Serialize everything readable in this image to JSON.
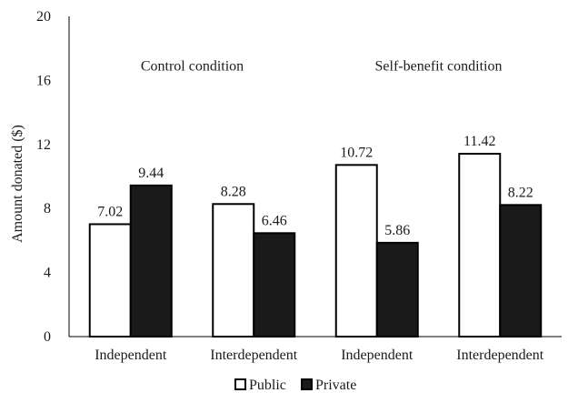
{
  "chart_data": {
    "type": "bar",
    "title": "",
    "xlabel": "",
    "ylabel": "Amount donated ($)",
    "ylim": [
      0,
      20
    ],
    "yticks": [
      0,
      4,
      8,
      12,
      16,
      20
    ],
    "grid": false,
    "legend_position": "bottom",
    "categories": [
      "Independent",
      "Interdependent",
      "Independent",
      "Interdependent"
    ],
    "series": [
      {
        "name": "Public",
        "values": [
          7.02,
          8.28,
          10.72,
          11.42
        ],
        "labels": [
          "7.02",
          "8.28",
          "10.72",
          "11.42"
        ],
        "color": "#ffffff",
        "stroke": "#000000"
      },
      {
        "name": "Private",
        "values": [
          9.44,
          6.46,
          5.86,
          8.22
        ],
        "labels": [
          "9.44",
          "6.46",
          "5.86",
          "8.22"
        ],
        "color": "#1a1a1a",
        "stroke": "#000000"
      }
    ],
    "annotations": [
      {
        "text": "Control condition",
        "category_index": 0.5,
        "y": 16.4
      },
      {
        "text": "Self-benefit condition",
        "category_index": 2.5,
        "y": 16.4
      }
    ]
  }
}
